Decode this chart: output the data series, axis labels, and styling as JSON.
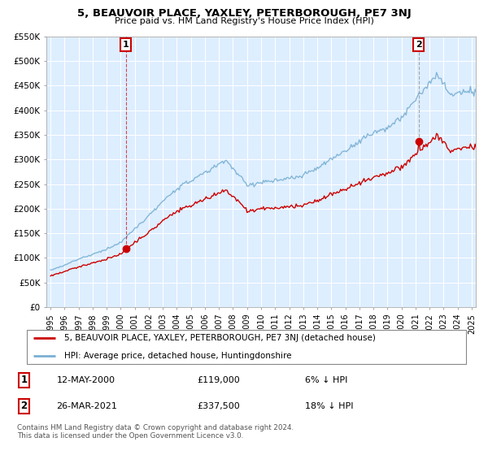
{
  "title": "5, BEAUVOIR PLACE, YAXLEY, PETERBOROUGH, PE7 3NJ",
  "subtitle": "Price paid vs. HM Land Registry's House Price Index (HPI)",
  "hpi_label": "HPI: Average price, detached house, Huntingdonshire",
  "sale_label": "5, BEAUVOIR PLACE, YAXLEY, PETERBOROUGH, PE7 3NJ (detached house)",
  "annotation1": {
    "num": "1",
    "date": "12-MAY-2000",
    "price": "£119,000",
    "pct": "6% ↓ HPI",
    "year": 2000.37
  },
  "annotation2": {
    "num": "2",
    "date": "26-MAR-2021",
    "price": "£337,500",
    "pct": "18% ↓ HPI",
    "year": 2021.23
  },
  "footer": "Contains HM Land Registry data © Crown copyright and database right 2024.\nThis data is licensed under the Open Government Licence v3.0.",
  "sale_color": "#cc0000",
  "hpi_color": "#7ab0d4",
  "chart_bg": "#ddeeff",
  "ylim": [
    0,
    550000
  ],
  "yticks": [
    0,
    50000,
    100000,
    150000,
    200000,
    250000,
    300000,
    350000,
    400000,
    450000,
    500000,
    550000
  ],
  "sale1_value": 119000,
  "sale1_year": 2000.37,
  "sale2_value": 337500,
  "sale2_year": 2021.23
}
